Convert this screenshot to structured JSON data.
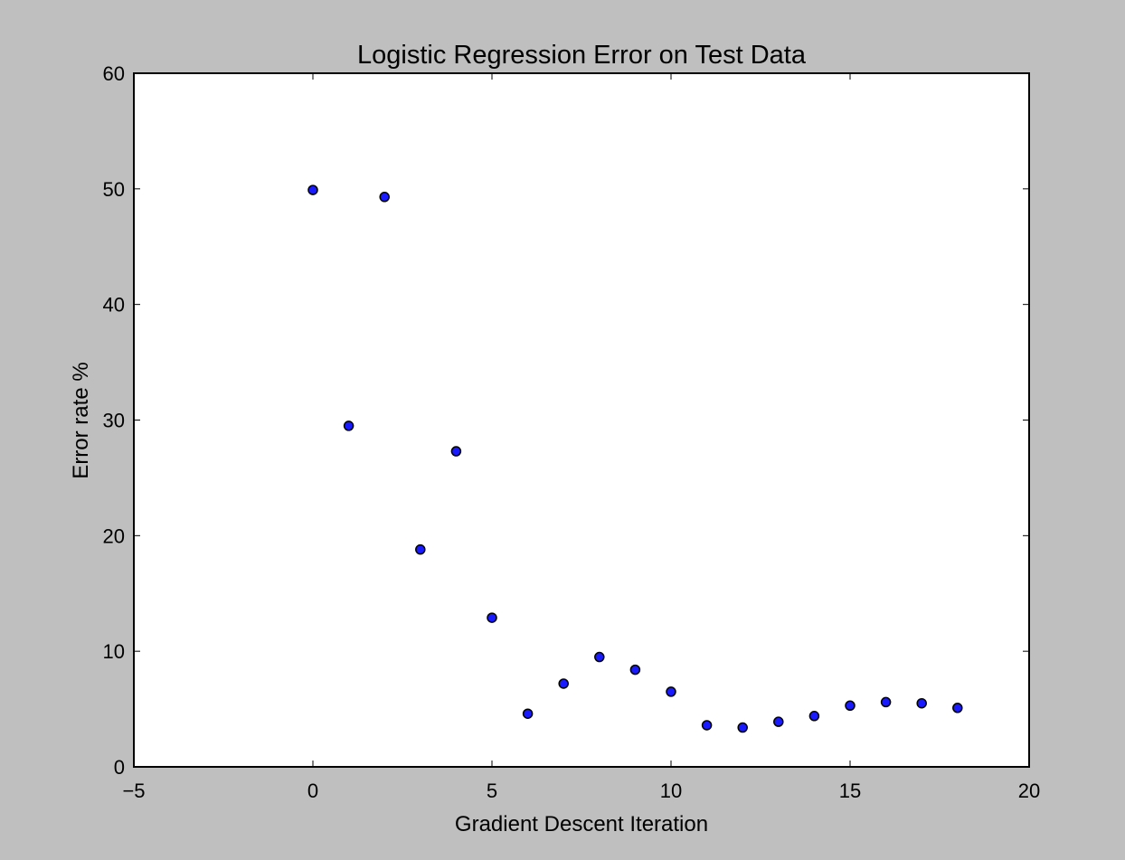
{
  "chart_data": {
    "type": "scatter",
    "title": "Logistic Regression Error on Test Data",
    "xlabel": "Gradient Descent Iteration",
    "ylabel": "Error rate %",
    "xlim": [
      -5,
      20
    ],
    "ylim": [
      0,
      60
    ],
    "xticks": [
      -5,
      0,
      5,
      10,
      15,
      20
    ],
    "xtick_labels": [
      "−5",
      "0",
      "5",
      "10",
      "15",
      "20"
    ],
    "yticks": [
      0,
      10,
      20,
      30,
      40,
      50,
      60
    ],
    "ytick_labels": [
      "0",
      "10",
      "20",
      "30",
      "40",
      "50",
      "60"
    ],
    "grid": false,
    "legend": "none",
    "marker_color": "#1a1aff",
    "series": [
      {
        "x": [
          0,
          1,
          2,
          3,
          4,
          5,
          6,
          7,
          8,
          9,
          10,
          11,
          12,
          13,
          14,
          15,
          16,
          17,
          18
        ],
        "y": [
          49.9,
          29.5,
          49.3,
          18.8,
          27.3,
          12.9,
          4.6,
          7.2,
          9.5,
          8.4,
          6.5,
          3.6,
          3.4,
          3.9,
          4.4,
          5.3,
          5.6,
          5.5,
          5.1
        ]
      }
    ]
  }
}
